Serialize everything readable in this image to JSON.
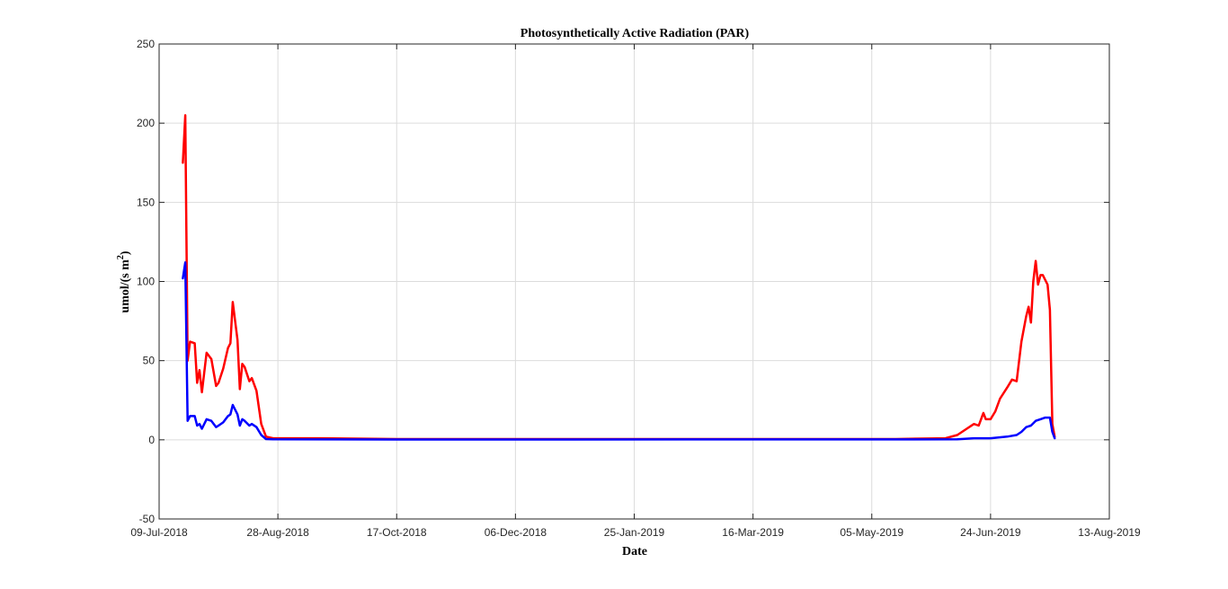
{
  "chart_data": {
    "type": "line",
    "title": "Photosynthetically Active Radiation (PAR)",
    "xlabel": "Date",
    "ylabel": "umol/(s m2)",
    "ylabel_parts": {
      "main": "umol/(s m",
      "superscript": "2",
      "close": ")"
    },
    "x_type": "date",
    "xlim": [
      "2018-07-09",
      "2019-08-13"
    ],
    "ylim": [
      -50,
      250
    ],
    "grid": true,
    "x_ticks": [
      {
        "date": "2018-07-09",
        "label": "09-Jul-2018"
      },
      {
        "date": "2018-08-28",
        "label": "28-Aug-2018"
      },
      {
        "date": "2018-10-17",
        "label": "17-Oct-2018"
      },
      {
        "date": "2018-12-06",
        "label": "06-Dec-2018"
      },
      {
        "date": "2019-01-25",
        "label": "25-Jan-2019"
      },
      {
        "date": "2019-03-16",
        "label": "16-Mar-2019"
      },
      {
        "date": "2019-05-05",
        "label": "05-May-2019"
      },
      {
        "date": "2019-06-24",
        "label": "24-Jun-2019"
      },
      {
        "date": "2019-08-13",
        "label": "13-Aug-2019"
      }
    ],
    "y_ticks": [
      -50,
      0,
      50,
      100,
      150,
      200,
      250
    ],
    "series": [
      {
        "color": "#ff0000",
        "points": [
          [
            "2018-07-19",
            175
          ],
          [
            "2018-07-20",
            205
          ],
          [
            "2018-07-21",
            50
          ],
          [
            "2018-07-22",
            62
          ],
          [
            "2018-07-24",
            61
          ],
          [
            "2018-07-25",
            36
          ],
          [
            "2018-07-26",
            44
          ],
          [
            "2018-07-27",
            30
          ],
          [
            "2018-07-29",
            55
          ],
          [
            "2018-07-31",
            51
          ],
          [
            "2018-08-02",
            34
          ],
          [
            "2018-08-03",
            36
          ],
          [
            "2018-08-05",
            45
          ],
          [
            "2018-08-07",
            58
          ],
          [
            "2018-08-08",
            61
          ],
          [
            "2018-08-09",
            87
          ],
          [
            "2018-08-11",
            63
          ],
          [
            "2018-08-12",
            32
          ],
          [
            "2018-08-13",
            48
          ],
          [
            "2018-08-14",
            46
          ],
          [
            "2018-08-16",
            37
          ],
          [
            "2018-08-17",
            39
          ],
          [
            "2018-08-19",
            31
          ],
          [
            "2018-08-21",
            10
          ],
          [
            "2018-08-23",
            2
          ],
          [
            "2018-08-26",
            1
          ],
          [
            "2018-09-15",
            1
          ],
          [
            "2018-10-17",
            0.5
          ],
          [
            "2019-03-16",
            0.5
          ],
          [
            "2019-05-15",
            0.5
          ],
          [
            "2019-06-05",
            1
          ],
          [
            "2019-06-10",
            3
          ],
          [
            "2019-06-14",
            7
          ],
          [
            "2019-06-17",
            10
          ],
          [
            "2019-06-19",
            9
          ],
          [
            "2019-06-21",
            17
          ],
          [
            "2019-06-22",
            13
          ],
          [
            "2019-06-24",
            13
          ],
          [
            "2019-06-26",
            18
          ],
          [
            "2019-06-28",
            26
          ],
          [
            "2019-07-01",
            33
          ],
          [
            "2019-07-03",
            38
          ],
          [
            "2019-07-05",
            37
          ],
          [
            "2019-07-07",
            62
          ],
          [
            "2019-07-09",
            78
          ],
          [
            "2019-07-10",
            84
          ],
          [
            "2019-07-11",
            74
          ],
          [
            "2019-07-12",
            100
          ],
          [
            "2019-07-13",
            113
          ],
          [
            "2019-07-14",
            98
          ],
          [
            "2019-07-15",
            104
          ],
          [
            "2019-07-16",
            104
          ],
          [
            "2019-07-18",
            98
          ],
          [
            "2019-07-19",
            82
          ],
          [
            "2019-07-20",
            10
          ],
          [
            "2019-07-21",
            2
          ]
        ]
      },
      {
        "color": "#0000ff",
        "points": [
          [
            "2018-07-19",
            102
          ],
          [
            "2018-07-20",
            112
          ],
          [
            "2018-07-21",
            12
          ],
          [
            "2018-07-22",
            15
          ],
          [
            "2018-07-24",
            15
          ],
          [
            "2018-07-25",
            9
          ],
          [
            "2018-07-26",
            10
          ],
          [
            "2018-07-27",
            7
          ],
          [
            "2018-07-29",
            13
          ],
          [
            "2018-07-31",
            12
          ],
          [
            "2018-08-02",
            8
          ],
          [
            "2018-08-03",
            9
          ],
          [
            "2018-08-05",
            11
          ],
          [
            "2018-08-07",
            15
          ],
          [
            "2018-08-08",
            16
          ],
          [
            "2018-08-09",
            22
          ],
          [
            "2018-08-11",
            16
          ],
          [
            "2018-08-12",
            9
          ],
          [
            "2018-08-13",
            13
          ],
          [
            "2018-08-14",
            12
          ],
          [
            "2018-08-16",
            9
          ],
          [
            "2018-08-17",
            10
          ],
          [
            "2018-08-19",
            8
          ],
          [
            "2018-08-21",
            3
          ],
          [
            "2018-08-23",
            0.5
          ],
          [
            "2018-08-26",
            0.3
          ],
          [
            "2018-10-17",
            0.2
          ],
          [
            "2019-06-10",
            0.3
          ],
          [
            "2019-06-17",
            1
          ],
          [
            "2019-06-24",
            1
          ],
          [
            "2019-07-01",
            2
          ],
          [
            "2019-07-05",
            3
          ],
          [
            "2019-07-07",
            5
          ],
          [
            "2019-07-09",
            8
          ],
          [
            "2019-07-11",
            9
          ],
          [
            "2019-07-13",
            12
          ],
          [
            "2019-07-15",
            13
          ],
          [
            "2019-07-17",
            14
          ],
          [
            "2019-07-19",
            14
          ],
          [
            "2019-07-20",
            5
          ],
          [
            "2019-07-21",
            1
          ]
        ]
      }
    ]
  }
}
